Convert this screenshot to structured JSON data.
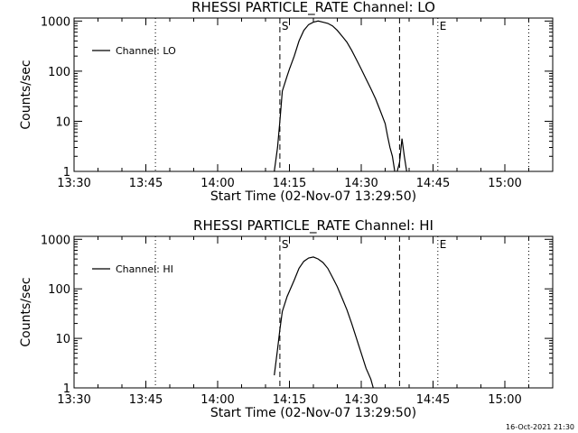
{
  "footer": {
    "timestamp": "16-Oct-2021 21:30"
  },
  "chart_data": [
    {
      "type": "line",
      "title": "RHESSI PARTICLE_RATE Channel: LO",
      "xlabel": "Start Time (02-Nov-07 13:29:50)",
      "ylabel": "Counts/sec",
      "yscale": "log",
      "xlim": [
        "13:30",
        "15:10"
      ],
      "ylim": [
        1,
        1000
      ],
      "xticks": [
        "13:30",
        "13:45",
        "14:00",
        "14:15",
        "14:30",
        "14:45",
        "15:00"
      ],
      "yticks": [
        "1",
        "10",
        "100",
        "1000"
      ],
      "legend": {
        "placement": "top-left",
        "entries": [
          "Channel: LO"
        ]
      },
      "markers": [
        {
          "time": "13:47",
          "style": "dotted",
          "label": ""
        },
        {
          "time": "14:13",
          "style": "dashed",
          "label": "S"
        },
        {
          "time": "14:38",
          "style": "dashed",
          "label": ""
        },
        {
          "time": "14:46",
          "style": "dotted",
          "label": "E"
        },
        {
          "time": "15:05",
          "style": "dotted",
          "label": ""
        }
      ],
      "series": [
        {
          "name": "Channel: LO",
          "segments": [
            [
              [
                "14:11:50",
                1
              ],
              [
                "14:12:30",
                3
              ],
              [
                "14:13:00",
                10
              ],
              [
                "14:13:30",
                40
              ],
              [
                "14:14:30",
                80
              ],
              [
                "14:15:00",
                110
              ],
              [
                "14:16:00",
                200
              ],
              [
                "14:17:00",
                400
              ],
              [
                "14:18:00",
                650
              ],
              [
                "14:19:00",
                850
              ],
              [
                "14:20:00",
                950
              ],
              [
                "14:21:00",
                1000
              ],
              [
                "14:22:00",
                950
              ],
              [
                "14:23:00",
                900
              ],
              [
                "14:24:00",
                800
              ],
              [
                "14:25:00",
                650
              ],
              [
                "14:26:00",
                500
              ],
              [
                "14:27:00",
                380
              ],
              [
                "14:28:00",
                260
              ],
              [
                "14:29:00",
                170
              ],
              [
                "14:30:00",
                110
              ],
              [
                "14:31:00",
                70
              ],
              [
                "14:32:00",
                45
              ],
              [
                "14:33:00",
                28
              ],
              [
                "14:34:00",
                16
              ],
              [
                "14:35:00",
                9
              ],
              [
                "14:35:30",
                5
              ],
              [
                "14:36:00",
                3
              ],
              [
                "14:36:30",
                2
              ],
              [
                "14:37:00",
                1
              ]
            ],
            [
              [
                "14:37:30",
                1
              ],
              [
                "14:38:00",
                1.5
              ],
              [
                "14:38:30",
                4.5
              ],
              [
                "14:39:00",
                2
              ],
              [
                "14:39:30",
                1
              ]
            ]
          ]
        }
      ]
    },
    {
      "type": "line",
      "title": "RHESSI PARTICLE_RATE Channel: HI",
      "xlabel": "Start Time (02-Nov-07 13:29:50)",
      "ylabel": "Counts/sec",
      "yscale": "log",
      "xlim": [
        "13:30",
        "15:10"
      ],
      "ylim": [
        1,
        1000
      ],
      "xticks": [
        "13:30",
        "13:45",
        "14:00",
        "14:15",
        "14:30",
        "14:45",
        "15:00"
      ],
      "yticks": [
        "1",
        "10",
        "100",
        "1000"
      ],
      "legend": {
        "placement": "top-left",
        "entries": [
          "Channel: HI"
        ]
      },
      "markers": [
        {
          "time": "13:47",
          "style": "dotted",
          "label": ""
        },
        {
          "time": "14:13",
          "style": "dashed",
          "label": "S"
        },
        {
          "time": "14:38",
          "style": "dashed",
          "label": ""
        },
        {
          "time": "14:46",
          "style": "dotted",
          "label": "E"
        },
        {
          "time": "15:05",
          "style": "dotted",
          "label": ""
        }
      ],
      "series": [
        {
          "name": "Channel: HI",
          "segments": [
            [
              [
                "14:11:50",
                1.8
              ],
              [
                "14:12:30",
                6
              ],
              [
                "14:13:00",
                15
              ],
              [
                "14:13:30",
                35
              ],
              [
                "14:14:30",
                70
              ],
              [
                "14:15:00",
                90
              ],
              [
                "14:16:00",
                150
              ],
              [
                "14:17:00",
                260
              ],
              [
                "14:18:00",
                360
              ],
              [
                "14:19:00",
                420
              ],
              [
                "14:20:00",
                440
              ],
              [
                "14:21:00",
                400
              ],
              [
                "14:22:00",
                340
              ],
              [
                "14:23:00",
                260
              ],
              [
                "14:24:00",
                170
              ],
              [
                "14:25:00",
                110
              ],
              [
                "14:26:00",
                65
              ],
              [
                "14:27:00",
                38
              ],
              [
                "14:28:00",
                20
              ],
              [
                "14:29:00",
                10
              ],
              [
                "14:30:00",
                5
              ],
              [
                "14:31:00",
                2.5
              ],
              [
                "14:32:00",
                1.5
              ],
              [
                "14:32:30",
                1
              ]
            ]
          ]
        }
      ]
    }
  ]
}
